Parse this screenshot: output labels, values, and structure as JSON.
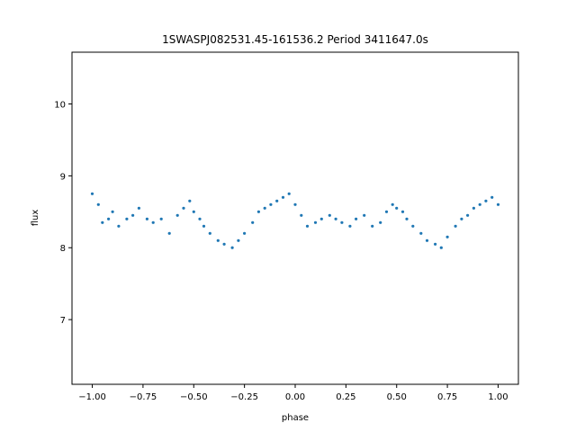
{
  "chart_data": {
    "type": "scatter",
    "title": "1SWASPJ082531.45-161536.2 Period 3411647.0s",
    "xlabel": "phase",
    "ylabel": "flux",
    "xlim": [
      -1.1,
      1.1
    ],
    "ylim": [
      6.1,
      10.72
    ],
    "xticks": [
      -1.0,
      -0.75,
      -0.5,
      -0.25,
      0.0,
      0.25,
      0.5,
      0.75,
      1.0
    ],
    "xtick_labels": [
      "−1.00",
      "−0.75",
      "−0.50",
      "−0.25",
      "0.00",
      "0.25",
      "0.50",
      "0.75",
      "1.00"
    ],
    "yticks": [
      7,
      8,
      9,
      10
    ],
    "ytick_labels": [
      "7",
      "8",
      "9",
      "10"
    ],
    "grid": false,
    "point_color": "#1f77b4",
    "series": [
      {
        "x": [
          -1.0,
          -0.97,
          -0.95,
          -0.92,
          -0.9,
          -0.87,
          -0.83,
          -0.8,
          -0.77,
          -0.73,
          -0.7,
          -0.66,
          -0.62,
          -0.58,
          -0.55,
          -0.52,
          -0.5,
          -0.47,
          -0.45,
          -0.42,
          -0.38,
          -0.35,
          -0.31,
          -0.28,
          -0.25,
          -0.21,
          -0.18,
          -0.15,
          -0.12,
          -0.09,
          -0.06,
          -0.03,
          0.0,
          0.03,
          0.06,
          0.1,
          0.13,
          0.17,
          0.2,
          0.23,
          0.27,
          0.3,
          0.34,
          0.38,
          0.42,
          0.45,
          0.48,
          0.5,
          0.53,
          0.55,
          0.58,
          0.62,
          0.65,
          0.69,
          0.72,
          0.75,
          0.79,
          0.82,
          0.85,
          0.88,
          0.91,
          0.94,
          0.97,
          1.0
        ],
        "y": [
          8.75,
          8.6,
          8.35,
          8.4,
          8.5,
          8.3,
          8.4,
          8.45,
          8.55,
          8.4,
          8.35,
          8.4,
          8.2,
          8.45,
          8.55,
          8.65,
          8.5,
          8.4,
          8.3,
          8.2,
          8.1,
          8.05,
          8.0,
          8.1,
          8.2,
          8.35,
          8.5,
          8.55,
          8.6,
          8.65,
          8.7,
          8.75,
          8.6,
          8.45,
          8.3,
          8.35,
          8.4,
          8.45,
          8.4,
          8.35,
          8.3,
          8.4,
          8.45,
          8.3,
          8.35,
          8.5,
          8.6,
          8.55,
          8.5,
          8.4,
          8.3,
          8.2,
          8.1,
          8.05,
          8.0,
          8.15,
          8.3,
          8.4,
          8.45,
          8.55,
          8.6,
          8.65,
          8.7,
          8.6
        ]
      }
    ]
  }
}
